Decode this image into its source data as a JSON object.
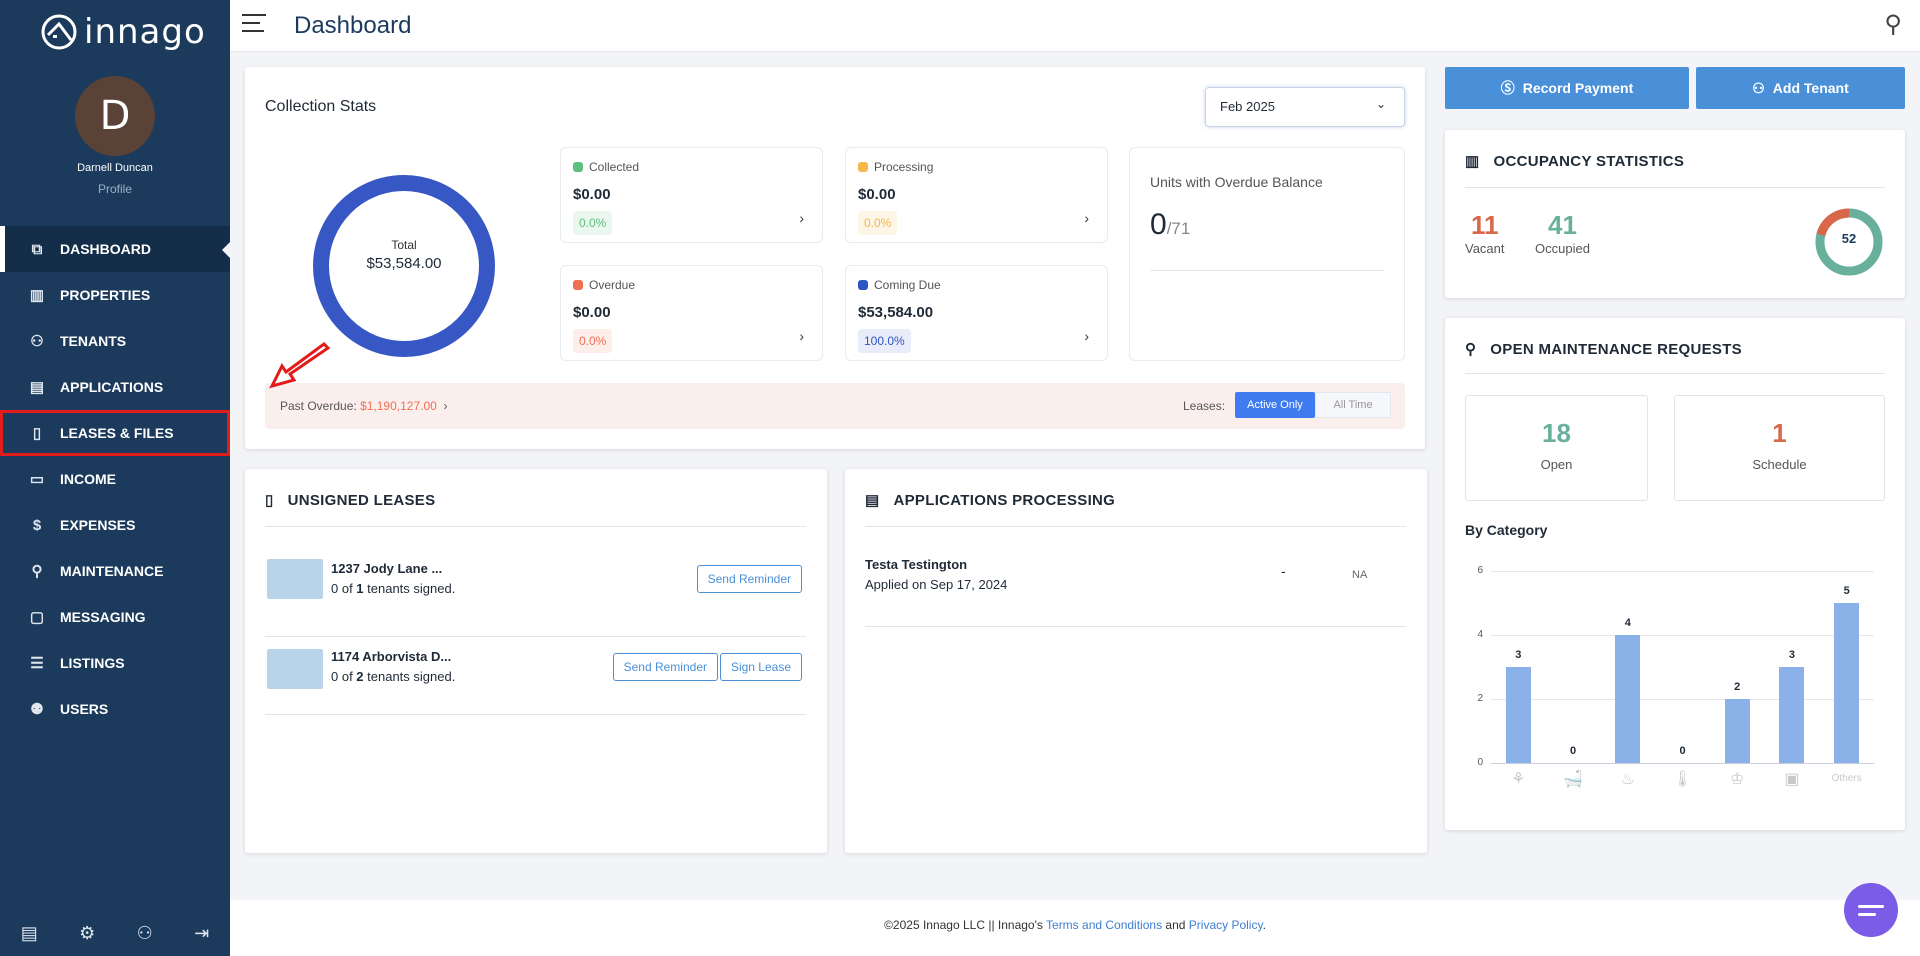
{
  "sidebar": {
    "logo": "innago",
    "avatar_letter": "D",
    "user_name": "Darnell Duncan",
    "profile_label": "Profile",
    "items": [
      {
        "label": "DASHBOARD",
        "icon": "dashboard-icon"
      },
      {
        "label": "PROPERTIES",
        "icon": "building-icon"
      },
      {
        "label": "TENANTS",
        "icon": "users-icon"
      },
      {
        "label": "APPLICATIONS",
        "icon": "document-icon"
      },
      {
        "label": "LEASES & FILES",
        "icon": "file-icon"
      },
      {
        "label": "INCOME",
        "icon": "wallet-icon"
      },
      {
        "label": "EXPENSES",
        "icon": "dollar-icon"
      },
      {
        "label": "MAINTENANCE",
        "icon": "wrench-icon"
      },
      {
        "label": "MESSAGING",
        "icon": "message-icon"
      },
      {
        "label": "LISTINGS",
        "icon": "list-icon"
      },
      {
        "label": "USERS",
        "icon": "user-icon"
      }
    ]
  },
  "header": {
    "title": "Dashboard"
  },
  "collection": {
    "title": "Collection Stats",
    "month": "Feb 2025",
    "total_label": "Total",
    "total_value": "$53,584.00",
    "cards": [
      {
        "label": "Collected",
        "value": "$0.00",
        "pct": "0.0%",
        "color": "#5fbf7f"
      },
      {
        "label": "Processing",
        "value": "$0.00",
        "pct": "0.0%",
        "color": "#f3b94a"
      },
      {
        "label": "Overdue",
        "value": "$0.00",
        "pct": "0.0%",
        "color": "#ef6f53"
      },
      {
        "label": "Coming Due",
        "value": "$53,584.00",
        "pct": "100.0%",
        "color": "#2f55c4"
      }
    ],
    "overdue_units_label": "Units with Overdue Balance",
    "overdue_units": "0",
    "total_units": "/71",
    "past_overdue_label": "Past Overdue:",
    "past_overdue_value": "$1,190,127.00",
    "leases_label": "Leases:",
    "filter_active": "Active Only",
    "filter_all": "All Time"
  },
  "actions": {
    "record_payment": "Record Payment",
    "add_tenant": "Add Tenant"
  },
  "occupancy": {
    "title": "OCCUPANCY STATISTICS",
    "vacant": "11",
    "vacant_label": "Vacant",
    "occupied": "41",
    "occupied_label": "Occupied",
    "total": "52"
  },
  "maintenance": {
    "title": "OPEN MAINTENANCE REQUESTS",
    "open": "18",
    "open_label": "Open",
    "schedule": "1",
    "schedule_label": "Schedule",
    "by_category": "By Category"
  },
  "chart_data": {
    "type": "bar",
    "categories": [
      "lighting",
      "plumbing",
      "heating",
      "temperature",
      "kitchen",
      "appliance",
      "Others"
    ],
    "values": [
      3,
      0,
      4,
      0,
      2,
      3,
      5
    ],
    "ylim": [
      0,
      6
    ],
    "yticks": [
      0,
      2,
      4,
      6
    ],
    "grid": true,
    "color": "#8ab2e8"
  },
  "unsigned": {
    "title": "UNSIGNED LEASES",
    "rows": [
      {
        "address": "1237 Jody Lane ...",
        "pre": "0 of ",
        "count": "1",
        "post": " tenants signed.",
        "reminder": "Send Reminder"
      },
      {
        "address": "1174 Arborvista D...",
        "pre": "0 of ",
        "count": "2",
        "post": " tenants signed.",
        "reminder": "Send Reminder",
        "sign": "Sign Lease"
      }
    ]
  },
  "applications": {
    "title": "APPLICATIONS PROCESSING",
    "rows": [
      {
        "name": "Testa Testington",
        "applied": "Applied on Sep 17, 2024",
        "dash": "-",
        "status": "NA"
      }
    ]
  },
  "footer": {
    "copyright": "©2025 Innago LLC || Innago's ",
    "terms": "Terms and Conditions",
    "and": " and ",
    "privacy": "Privacy Policy",
    "end": "."
  }
}
